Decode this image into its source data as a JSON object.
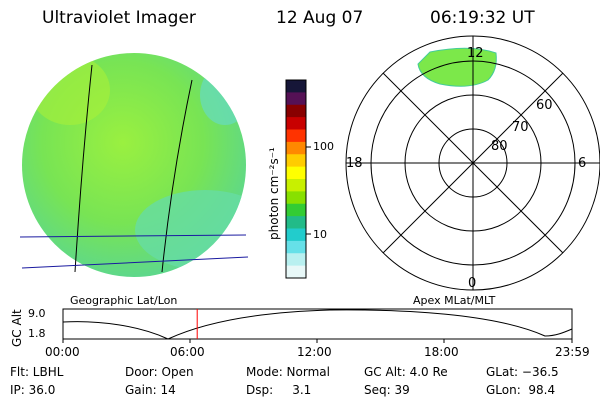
{
  "header": {
    "instrument": "Ultraviolet Imager",
    "date": "12 Aug 07",
    "time": "06:19:32 UT"
  },
  "colorbar": {
    "label": "photon cm⁻²s⁻¹",
    "ticks": [
      "100",
      "10"
    ],
    "colors": [
      "#161638",
      "#551155",
      "#880000",
      "#c80000",
      "#ff3300",
      "#ff8800",
      "#ffcc00",
      "#ffff00",
      "#c8f000",
      "#88e000",
      "#33cc33",
      "#22bb88",
      "#22cccc",
      "#66e0e8",
      "#b8f0f0",
      "#e8f8f8"
    ]
  },
  "left_panel": {
    "label": "Geographic Lat/Lon",
    "disk_color": "#7ce84a"
  },
  "right_panel": {
    "label": "Apex MLat/MLT",
    "mlt_labels": {
      "top": "12",
      "bottom": "0",
      "left": "18",
      "right": "6"
    },
    "mlat_labels": [
      "60",
      "70",
      "80"
    ]
  },
  "timeline": {
    "ylabel": "GC Alt",
    "y_ticks": [
      "9.0",
      "1.8"
    ],
    "x_ticks": [
      "00:00",
      "06:00",
      "12:00",
      "18:00",
      "23:59"
    ],
    "marker_time_hours": 6.33,
    "marker_color": "#ff0000"
  },
  "footer": {
    "row1": [
      "Flt: LBHL",
      "Door: Open",
      "Mode: Normal",
      "GC Alt: 4.0 Re",
      "GLat: −36.5"
    ],
    "row2": [
      "IP: 36.0",
      "Gain: 14",
      "Dsp:     3.1",
      "Seq: 39",
      "GLon:  98.4"
    ]
  }
}
